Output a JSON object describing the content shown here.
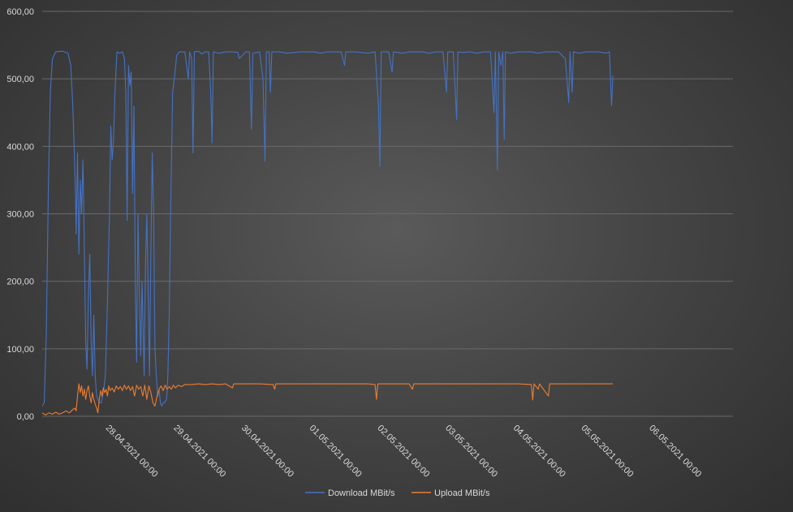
{
  "chart_data": {
    "type": "line",
    "title": "",
    "xlabel": "",
    "ylabel": "",
    "ylim": [
      0,
      600
    ],
    "yticks": [
      "0,00",
      "100,00",
      "200,00",
      "300,00",
      "400,00",
      "500,00",
      "600,00"
    ],
    "xticks": [
      {
        "label": "28.04.2021 00:00",
        "day": 1
      },
      {
        "label": "29.04.2021 00:00",
        "day": 2
      },
      {
        "label": "30.04.2021 00:00",
        "day": 3
      },
      {
        "label": "01.05.2021 00:00",
        "day": 4
      },
      {
        "label": "02.05.2021 00:00",
        "day": 5
      },
      {
        "label": "03.05.2021 00:00",
        "day": 6
      },
      {
        "label": "04.05.2021 00:00",
        "day": 7
      },
      {
        "label": "05.05.2021 00:00",
        "day": 8
      },
      {
        "label": "06.05.2021 00:00",
        "day": 9
      }
    ],
    "xlim_days": [
      0,
      9.73
    ],
    "grid": true,
    "legend": "bottom",
    "series": [
      {
        "name": "Download MBit/s",
        "color": "#4472c4",
        "points": [
          [
            0.0,
            15
          ],
          [
            0.03,
            20
          ],
          [
            0.06,
            120
          ],
          [
            0.09,
            330
          ],
          [
            0.12,
            480
          ],
          [
            0.15,
            530
          ],
          [
            0.2,
            540
          ],
          [
            0.3,
            541
          ],
          [
            0.38,
            538
          ],
          [
            0.42,
            520
          ],
          [
            0.45,
            460
          ],
          [
            0.47,
            400
          ],
          [
            0.49,
            330
          ],
          [
            0.5,
            270
          ],
          [
            0.52,
            390
          ],
          [
            0.54,
            240
          ],
          [
            0.56,
            350
          ],
          [
            0.58,
            300
          ],
          [
            0.6,
            380
          ],
          [
            0.62,
            250
          ],
          [
            0.64,
            110
          ],
          [
            0.66,
            70
          ],
          [
            0.68,
            180
          ],
          [
            0.7,
            240
          ],
          [
            0.72,
            110
          ],
          [
            0.74,
            60
          ],
          [
            0.76,
            150
          ],
          [
            0.78,
            60
          ],
          [
            0.8,
            30
          ],
          [
            0.82,
            25
          ],
          [
            0.85,
            20
          ],
          [
            0.87,
            20
          ],
          [
            0.9,
            35
          ],
          [
            0.93,
            60
          ],
          [
            0.96,
            170
          ],
          [
            0.99,
            300
          ],
          [
            1.01,
            430
          ],
          [
            1.03,
            380
          ],
          [
            1.05,
            410
          ],
          [
            1.07,
            480
          ],
          [
            1.1,
            540
          ],
          [
            1.14,
            538
          ],
          [
            1.18,
            540
          ],
          [
            1.21,
            530
          ],
          [
            1.23,
            480
          ],
          [
            1.25,
            290
          ],
          [
            1.27,
            520
          ],
          [
            1.29,
            490
          ],
          [
            1.31,
            510
          ],
          [
            1.33,
            330
          ],
          [
            1.35,
            460
          ],
          [
            1.37,
            200
          ],
          [
            1.39,
            80
          ],
          [
            1.41,
            300
          ],
          [
            1.43,
            180
          ],
          [
            1.45,
            90
          ],
          [
            1.47,
            200
          ],
          [
            1.5,
            60
          ],
          [
            1.52,
            220
          ],
          [
            1.54,
            300
          ],
          [
            1.56,
            180
          ],
          [
            1.58,
            60
          ],
          [
            1.6,
            250
          ],
          [
            1.62,
            390
          ],
          [
            1.64,
            300
          ],
          [
            1.66,
            100
          ],
          [
            1.68,
            60
          ],
          [
            1.7,
            30
          ],
          [
            1.72,
            40
          ],
          [
            1.74,
            20
          ],
          [
            1.76,
            15
          ],
          [
            1.78,
            20
          ],
          [
            1.8,
            20
          ],
          [
            1.83,
            25
          ],
          [
            1.85,
            60
          ],
          [
            1.87,
            150
          ],
          [
            1.89,
            300
          ],
          [
            1.92,
            480
          ],
          [
            1.95,
            505
          ],
          [
            1.98,
            535
          ],
          [
            2.02,
            540
          ],
          [
            2.1,
            540
          ],
          [
            2.15,
            500
          ],
          [
            2.17,
            540
          ],
          [
            2.2,
            530
          ],
          [
            2.22,
            390
          ],
          [
            2.24,
            540
          ],
          [
            2.3,
            541
          ],
          [
            2.35,
            537
          ],
          [
            2.4,
            540
          ],
          [
            2.45,
            540
          ],
          [
            2.48,
            480
          ],
          [
            2.5,
            405
          ],
          [
            2.52,
            540
          ],
          [
            2.6,
            538
          ],
          [
            2.7,
            540
          ],
          [
            2.8,
            540
          ],
          [
            2.88,
            539
          ],
          [
            2.9,
            530
          ],
          [
            3.0,
            540
          ],
          [
            3.05,
            540
          ],
          [
            3.08,
            425
          ],
          [
            3.1,
            538
          ],
          [
            3.2,
            540
          ],
          [
            3.25,
            500
          ],
          [
            3.28,
            378
          ],
          [
            3.3,
            540
          ],
          [
            3.34,
            540
          ],
          [
            3.36,
            480
          ],
          [
            3.38,
            540
          ],
          [
            3.5,
            540
          ],
          [
            3.6,
            538
          ],
          [
            3.8,
            540
          ],
          [
            4.0,
            540
          ],
          [
            4.1,
            538
          ],
          [
            4.2,
            540
          ],
          [
            4.3,
            540
          ],
          [
            4.4,
            540
          ],
          [
            4.45,
            520
          ],
          [
            4.47,
            540
          ],
          [
            4.6,
            540
          ],
          [
            4.8,
            538
          ],
          [
            4.9,
            540
          ],
          [
            4.95,
            460
          ],
          [
            4.97,
            370
          ],
          [
            4.99,
            540
          ],
          [
            5.1,
            540
          ],
          [
            5.15,
            510
          ],
          [
            5.17,
            540
          ],
          [
            5.3,
            538
          ],
          [
            5.4,
            540
          ],
          [
            5.5,
            540
          ],
          [
            5.6,
            540
          ],
          [
            5.7,
            538
          ],
          [
            5.8,
            540
          ],
          [
            5.9,
            540
          ],
          [
            5.95,
            480
          ],
          [
            5.97,
            540
          ],
          [
            6.05,
            540
          ],
          [
            6.1,
            440
          ],
          [
            6.12,
            540
          ],
          [
            6.2,
            539
          ],
          [
            6.3,
            540
          ],
          [
            6.4,
            538
          ],
          [
            6.5,
            540
          ],
          [
            6.6,
            540
          ],
          [
            6.65,
            450
          ],
          [
            6.67,
            540
          ],
          [
            6.7,
            365
          ],
          [
            6.72,
            540
          ],
          [
            6.75,
            520
          ],
          [
            6.78,
            540
          ],
          [
            6.8,
            410
          ],
          [
            6.82,
            540
          ],
          [
            6.9,
            538
          ],
          [
            7.0,
            540
          ],
          [
            7.1,
            540
          ],
          [
            7.2,
            540
          ],
          [
            7.3,
            538
          ],
          [
            7.4,
            540
          ],
          [
            7.5,
            540
          ],
          [
            7.6,
            540
          ],
          [
            7.7,
            530
          ],
          [
            7.75,
            465
          ],
          [
            7.77,
            540
          ],
          [
            7.8,
            480
          ],
          [
            7.82,
            540
          ],
          [
            7.9,
            538
          ],
          [
            8.0,
            540
          ],
          [
            8.1,
            540
          ],
          [
            8.2,
            540
          ],
          [
            8.3,
            538
          ],
          [
            8.35,
            540
          ],
          [
            8.38,
            460
          ],
          [
            8.4,
            505
          ]
        ]
      },
      {
        "name": "Upload MBit/s",
        "color": "#ed7d31",
        "points": [
          [
            0.0,
            5
          ],
          [
            0.05,
            2
          ],
          [
            0.1,
            5
          ],
          [
            0.15,
            3
          ],
          [
            0.2,
            6
          ],
          [
            0.25,
            3
          ],
          [
            0.3,
            5
          ],
          [
            0.35,
            8
          ],
          [
            0.4,
            5
          ],
          [
            0.45,
            10
          ],
          [
            0.48,
            12
          ],
          [
            0.5,
            8
          ],
          [
            0.52,
            30
          ],
          [
            0.54,
            48
          ],
          [
            0.56,
            35
          ],
          [
            0.58,
            45
          ],
          [
            0.6,
            30
          ],
          [
            0.62,
            40
          ],
          [
            0.64,
            25
          ],
          [
            0.66,
            38
          ],
          [
            0.68,
            45
          ],
          [
            0.7,
            30
          ],
          [
            0.72,
            20
          ],
          [
            0.74,
            35
          ],
          [
            0.76,
            25
          ],
          [
            0.78,
            18
          ],
          [
            0.8,
            12
          ],
          [
            0.82,
            5
          ],
          [
            0.84,
            25
          ],
          [
            0.86,
            38
          ],
          [
            0.88,
            30
          ],
          [
            0.9,
            42
          ],
          [
            0.92,
            35
          ],
          [
            0.94,
            40
          ],
          [
            0.96,
            30
          ],
          [
            0.98,
            45
          ],
          [
            1.0,
            38
          ],
          [
            1.03,
            42
          ],
          [
            1.06,
            36
          ],
          [
            1.09,
            45
          ],
          [
            1.12,
            40
          ],
          [
            1.15,
            44
          ],
          [
            1.18,
            38
          ],
          [
            1.21,
            46
          ],
          [
            1.24,
            40
          ],
          [
            1.27,
            45
          ],
          [
            1.3,
            38
          ],
          [
            1.33,
            44
          ],
          [
            1.36,
            30
          ],
          [
            1.39,
            46
          ],
          [
            1.42,
            40
          ],
          [
            1.45,
            44
          ],
          [
            1.48,
            30
          ],
          [
            1.51,
            46
          ],
          [
            1.54,
            25
          ],
          [
            1.57,
            45
          ],
          [
            1.6,
            35
          ],
          [
            1.63,
            20
          ],
          [
            1.66,
            15
          ],
          [
            1.69,
            30
          ],
          [
            1.72,
            40
          ],
          [
            1.75,
            45
          ],
          [
            1.78,
            38
          ],
          [
            1.81,
            46
          ],
          [
            1.84,
            40
          ],
          [
            1.87,
            44
          ],
          [
            1.9,
            40
          ],
          [
            1.93,
            46
          ],
          [
            1.96,
            42
          ],
          [
            2.0,
            46
          ],
          [
            2.05,
            44
          ],
          [
            2.1,
            47
          ],
          [
            2.2,
            47
          ],
          [
            2.3,
            48
          ],
          [
            2.4,
            47
          ],
          [
            2.5,
            48
          ],
          [
            2.6,
            47
          ],
          [
            2.7,
            48
          ],
          [
            2.8,
            42
          ],
          [
            2.82,
            48
          ],
          [
            3.0,
            48
          ],
          [
            3.2,
            48
          ],
          [
            3.4,
            47
          ],
          [
            3.42,
            40
          ],
          [
            3.44,
            48
          ],
          [
            3.6,
            48
          ],
          [
            3.8,
            48
          ],
          [
            4.0,
            48
          ],
          [
            4.2,
            48
          ],
          [
            4.4,
            48
          ],
          [
            4.6,
            48
          ],
          [
            4.8,
            48
          ],
          [
            4.9,
            47
          ],
          [
            4.92,
            25
          ],
          [
            4.94,
            48
          ],
          [
            5.1,
            48
          ],
          [
            5.4,
            48
          ],
          [
            5.45,
            40
          ],
          [
            5.47,
            48
          ],
          [
            5.7,
            48
          ],
          [
            6.0,
            48
          ],
          [
            6.2,
            48
          ],
          [
            6.4,
            48
          ],
          [
            6.6,
            48
          ],
          [
            7.0,
            48
          ],
          [
            7.2,
            47
          ],
          [
            7.22,
            24
          ],
          [
            7.24,
            48
          ],
          [
            7.3,
            40
          ],
          [
            7.32,
            48
          ],
          [
            7.45,
            30
          ],
          [
            7.47,
            48
          ],
          [
            7.6,
            48
          ],
          [
            8.0,
            48
          ],
          [
            8.2,
            48
          ],
          [
            8.3,
            48
          ],
          [
            8.4,
            48
          ]
        ]
      }
    ]
  }
}
